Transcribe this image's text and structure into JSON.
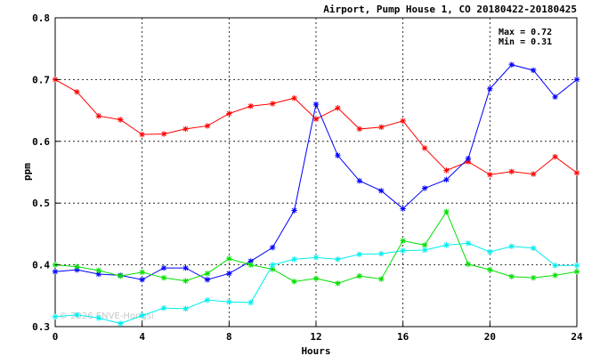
{
  "chart_data": {
    "type": "line",
    "title": "Airport, Pump House 1, CO 20180422-20180425",
    "xlabel": "Hours",
    "ylabel": "ppm",
    "xlim": [
      0,
      24
    ],
    "ylim": [
      0.3,
      0.8
    ],
    "xticks": [
      0,
      4,
      8,
      12,
      16,
      20,
      24
    ],
    "yticks": [
      0.3,
      0.4,
      0.5,
      0.6,
      0.7,
      0.8
    ],
    "xtick_labels": [
      "0",
      "4",
      "8",
      "12",
      "16",
      "20",
      "24"
    ],
    "ytick_labels": [
      "0.3",
      "0.4",
      "0.5",
      "0.6",
      "0.7",
      "0.8"
    ],
    "grid": true,
    "max_label": "Max = 0.72",
    "min_label": "Min = 0.31",
    "watermark": "© 2026 ENVE-Hongsi",
    "x": [
      0,
      1,
      2,
      3,
      4,
      5,
      6,
      7,
      8,
      9,
      10,
      11,
      12,
      13,
      14,
      15,
      16,
      17,
      18,
      19,
      20,
      21,
      22,
      23,
      24
    ],
    "series": [
      {
        "color": "#ff0000",
        "values": [
          0.7,
          0.68,
          0.641,
          0.635,
          0.611,
          0.612,
          0.62,
          0.625,
          0.645,
          0.657,
          0.661,
          0.67,
          0.636,
          0.654,
          0.62,
          0.623,
          0.633,
          0.589,
          0.553,
          0.567,
          0.546,
          0.551,
          0.547,
          0.575,
          0.549
        ]
      },
      {
        "color": "#0000ff",
        "values": [
          0.389,
          0.392,
          0.385,
          0.383,
          0.376,
          0.395,
          0.395,
          0.376,
          0.386,
          0.406,
          0.428,
          0.488,
          0.66,
          0.577,
          0.536,
          0.52,
          0.491,
          0.524,
          0.538,
          0.572,
          0.685,
          0.724,
          0.715,
          0.672,
          0.7
        ]
      },
      {
        "color": "#00e000",
        "values": [
          0.4,
          0.397,
          0.391,
          0.382,
          0.388,
          0.379,
          0.374,
          0.386,
          0.41,
          0.4,
          0.393,
          0.373,
          0.378,
          0.37,
          0.382,
          0.377,
          0.439,
          0.432,
          0.486,
          0.401,
          0.392,
          0.381,
          0.379,
          0.383,
          0.389
        ]
      },
      {
        "color": "#00eeee",
        "values": [
          0.316,
          0.319,
          0.314,
          0.305,
          0.318,
          0.33,
          0.329,
          0.343,
          0.34,
          0.339,
          0.4,
          0.409,
          0.412,
          0.409,
          0.417,
          0.418,
          0.423,
          0.424,
          0.432,
          0.435,
          0.421,
          0.43,
          0.427,
          0.399,
          0.399
        ]
      }
    ]
  }
}
